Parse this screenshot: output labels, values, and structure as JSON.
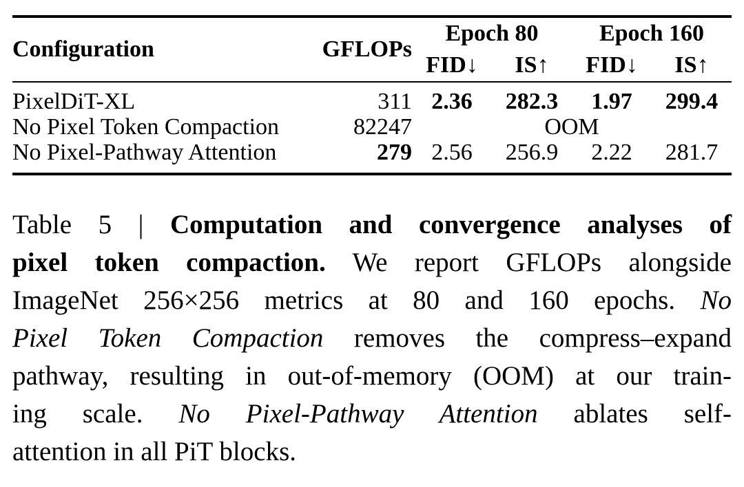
{
  "page": {
    "background": "#ffffff",
    "text_color": "#000000"
  },
  "table": {
    "header": {
      "configuration": "Configuration",
      "gflops": "GFLOPs",
      "epoch80": "Epoch 80",
      "epoch160": "Epoch 160",
      "fid_down": "FID↓",
      "is_up": "IS↑"
    },
    "rows": [
      {
        "configuration": "PixelDiT-XL",
        "gflops": "311",
        "gflops_bold": false,
        "metrics": [
          "2.36",
          "282.3",
          "1.97",
          "299.4"
        ],
        "metrics_bold": true
      },
      {
        "configuration": "No Pixel Token Compaction",
        "gflops": "82247",
        "gflops_bold": false,
        "oom": "OOM"
      },
      {
        "configuration": "No Pixel-Pathway Attention",
        "gflops": "279",
        "gflops_bold": true,
        "metrics": [
          "2.56",
          "256.9",
          "2.22",
          "281.7"
        ],
        "metrics_bold": false
      }
    ]
  },
  "caption": {
    "label": "Table 5",
    "lines": [
      {
        "just": true,
        "segments": [
          {
            "style": "regular",
            "text": "Table 5 | "
          },
          {
            "style": "bold",
            "text": "Computation and convergence analyses of"
          }
        ]
      },
      {
        "just": true,
        "segments": [
          {
            "style": "bold",
            "text": "pixel token compaction."
          },
          {
            "style": "regular",
            "text": " We report GFLOPs alongside"
          }
        ]
      },
      {
        "just": true,
        "segments": [
          {
            "style": "regular",
            "text": "ImageNet 256×256 metrics at 80 and 160 epochs. "
          },
          {
            "style": "italic",
            "text": "No"
          }
        ]
      },
      {
        "just": true,
        "segments": [
          {
            "style": "italic",
            "text": "Pixel Token Compaction"
          },
          {
            "style": "regular",
            "text": " removes the compress–expand"
          }
        ]
      },
      {
        "just": true,
        "segments": [
          {
            "style": "regular",
            "text": "pathway, resulting in out-of-memory (OOM) at our train-"
          }
        ]
      },
      {
        "just": true,
        "segments": [
          {
            "style": "regular",
            "text": "ing scale. "
          },
          {
            "style": "italic",
            "text": "No Pixel-Pathway Attention"
          },
          {
            "style": "regular",
            "text": " ablates self-"
          }
        ]
      },
      {
        "just": false,
        "segments": [
          {
            "style": "regular",
            "text": "attention in all PiT blocks."
          }
        ]
      }
    ]
  }
}
